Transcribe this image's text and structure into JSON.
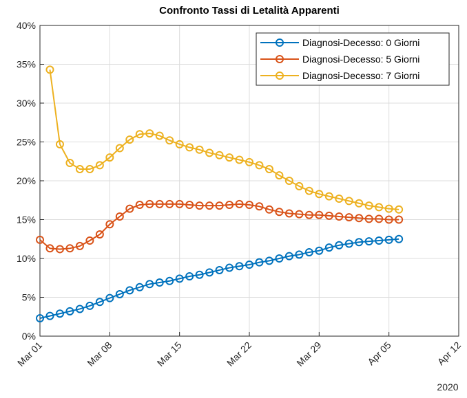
{
  "chart_data": {
    "type": "line",
    "title": "Confronto Tassi di Letalità Apparenti",
    "x_secondary_label": "2020",
    "x": [
      "2020-03-01",
      "2020-03-02",
      "2020-03-03",
      "2020-03-04",
      "2020-03-05",
      "2020-03-06",
      "2020-03-07",
      "2020-03-08",
      "2020-03-09",
      "2020-03-10",
      "2020-03-11",
      "2020-03-12",
      "2020-03-13",
      "2020-03-14",
      "2020-03-15",
      "2020-03-16",
      "2020-03-17",
      "2020-03-18",
      "2020-03-19",
      "2020-03-20",
      "2020-03-21",
      "2020-03-22",
      "2020-03-23",
      "2020-03-24",
      "2020-03-25",
      "2020-03-26",
      "2020-03-27",
      "2020-03-28",
      "2020-03-29",
      "2020-03-30",
      "2020-03-31",
      "2020-04-01",
      "2020-04-02",
      "2020-04-03",
      "2020-04-04",
      "2020-04-05",
      "2020-04-06"
    ],
    "series": [
      {
        "name": "Diagnosi-Decesso: 0 Giorni",
        "color": "#0072bd",
        "values": [
          2.3,
          2.6,
          2.9,
          3.2,
          3.5,
          3.9,
          4.4,
          4.9,
          5.4,
          5.9,
          6.3,
          6.7,
          6.9,
          7.1,
          7.4,
          7.7,
          7.9,
          8.2,
          8.5,
          8.8,
          9.0,
          9.2,
          9.5,
          9.7,
          10.0,
          10.3,
          10.5,
          10.8,
          11.0,
          11.4,
          11.7,
          11.9,
          12.1,
          12.2,
          12.3,
          12.4,
          12.5
        ]
      },
      {
        "name": "Diagnosi-Decesso: 5 Giorni",
        "color": "#d95319",
        "values": [
          12.4,
          11.3,
          11.2,
          11.3,
          11.6,
          12.3,
          13.1,
          14.4,
          15.4,
          16.4,
          16.9,
          17.0,
          17.0,
          17.0,
          17.0,
          16.9,
          16.8,
          16.8,
          16.8,
          16.9,
          17.0,
          16.9,
          16.7,
          16.3,
          16.0,
          15.8,
          15.7,
          15.6,
          15.6,
          15.5,
          15.4,
          15.3,
          15.2,
          15.1,
          15.1,
          15.0,
          15.0
        ]
      },
      {
        "name": "Diagnosi-Decesso: 7 Giorni",
        "color": "#edb120",
        "values": [
          null,
          34.3,
          24.7,
          22.3,
          21.5,
          21.5,
          22.0,
          23.0,
          24.2,
          25.3,
          26.0,
          26.1,
          25.8,
          25.2,
          24.7,
          24.3,
          24.0,
          23.6,
          23.3,
          23.0,
          22.7,
          22.4,
          22.0,
          21.5,
          20.7,
          20.0,
          19.3,
          18.7,
          18.3,
          18.0,
          17.7,
          17.4,
          17.1,
          16.8,
          16.6,
          16.4,
          16.3
        ]
      }
    ],
    "xlim": [
      "2020-03-01",
      "2020-04-12"
    ],
    "xticks": [
      {
        "value": "2020-03-01",
        "label": "Mar 01"
      },
      {
        "value": "2020-03-08",
        "label": "Mar 08"
      },
      {
        "value": "2020-03-15",
        "label": "Mar 15"
      },
      {
        "value": "2020-03-22",
        "label": "Mar 22"
      },
      {
        "value": "2020-03-29",
        "label": "Mar 29"
      },
      {
        "value": "2020-04-05",
        "label": "Apr 05"
      },
      {
        "value": "2020-04-12",
        "label": "Apr 12"
      }
    ],
    "ylim": [
      0,
      40
    ],
    "yticks": [
      {
        "value": 0,
        "label": "0%"
      },
      {
        "value": 5,
        "label": "5%"
      },
      {
        "value": 10,
        "label": "10%"
      },
      {
        "value": 15,
        "label": "15%"
      },
      {
        "value": 20,
        "label": "20%"
      },
      {
        "value": 25,
        "label": "25%"
      },
      {
        "value": 30,
        "label": "30%"
      },
      {
        "value": 35,
        "label": "35%"
      },
      {
        "value": 40,
        "label": "40%"
      }
    ],
    "grid": true,
    "legend_position": "northeast"
  }
}
